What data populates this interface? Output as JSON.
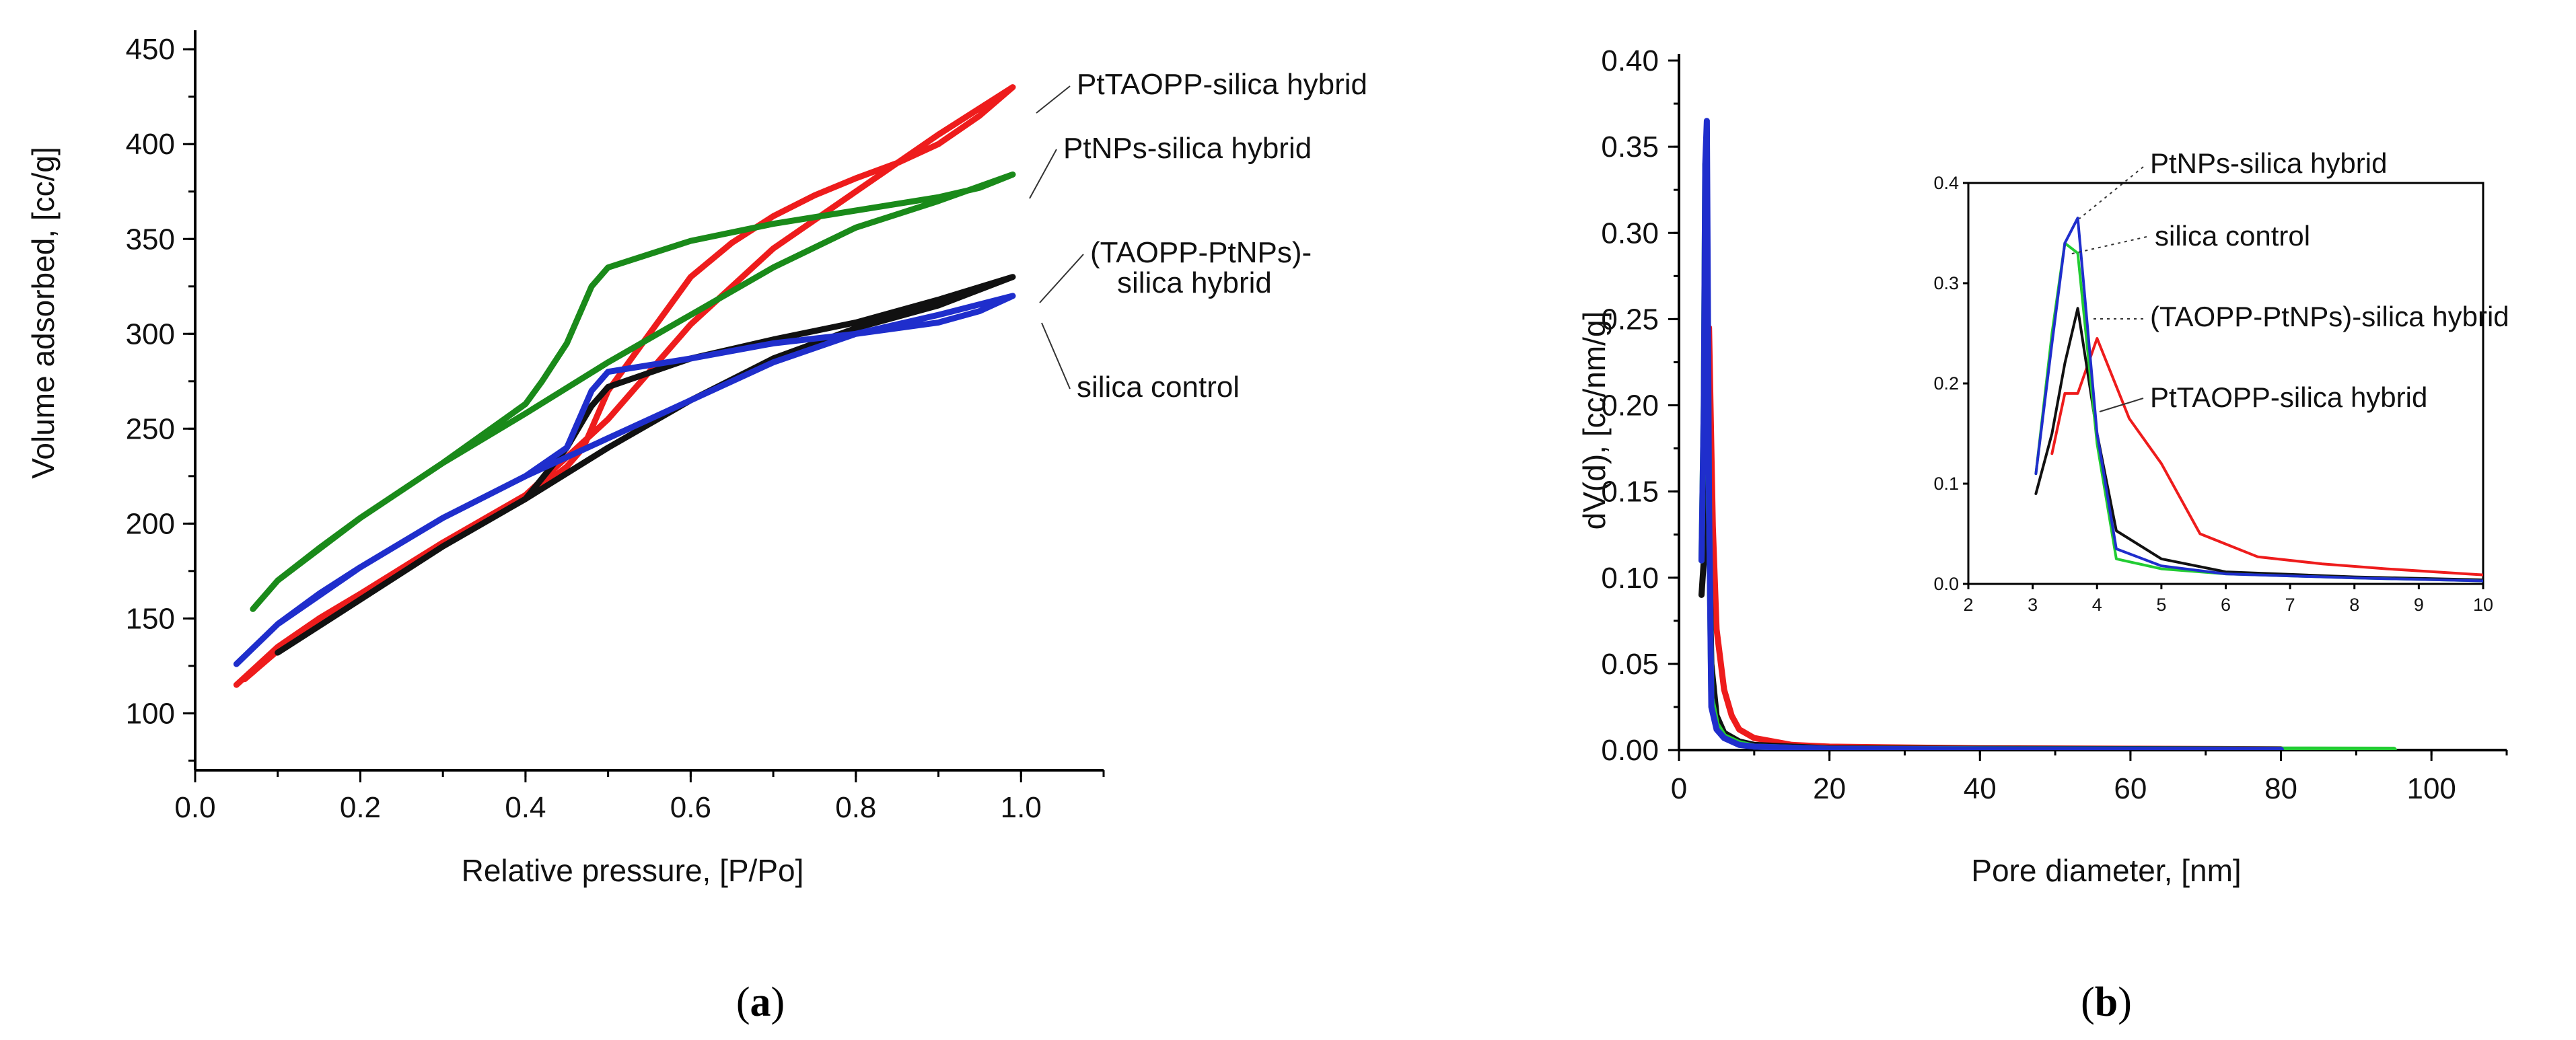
{
  "chart_data": [
    {
      "id": "a",
      "type": "line",
      "panel_label": "(a)",
      "panel_letter": "a",
      "xlabel": "Relative pressure, [P/Po]",
      "ylabel": "Volume adsorbed, [cc/g]",
      "xlim": [
        0.0,
        1.1
      ],
      "ylim": [
        70,
        460
      ],
      "x_ticks": [
        "0.0",
        "0.2",
        "0.4",
        "0.6",
        "0.8",
        "1.0"
      ],
      "y_ticks": [
        "100",
        "150",
        "200",
        "250",
        "300",
        "350",
        "400",
        "450"
      ],
      "series": [
        {
          "name": "PtTAOPP-silica hybrid",
          "color": "#ee1c1c",
          "x": [
            0.05,
            0.1,
            0.15,
            0.2,
            0.3,
            0.4,
            0.45,
            0.5,
            0.55,
            0.6,
            0.7,
            0.8,
            0.9,
            0.99,
            0.95,
            0.9,
            0.85,
            0.8,
            0.75,
            0.7,
            0.65,
            0.6,
            0.55,
            0.5,
            0.47,
            0.45,
            0.4,
            0.3,
            0.2,
            0.1,
            0.06
          ],
          "y": [
            115,
            135,
            150,
            163,
            190,
            215,
            235,
            255,
            280,
            305,
            345,
            375,
            405,
            430,
            415,
            400,
            390,
            382,
            373,
            362,
            348,
            330,
            300,
            270,
            240,
            230,
            213,
            189,
            162,
            133,
            118
          ]
        },
        {
          "name": "PtNPs-silica hybrid",
          "color": "#1a8a1a",
          "x": [
            0.07,
            0.1,
            0.15,
            0.2,
            0.3,
            0.4,
            0.5,
            0.6,
            0.7,
            0.8,
            0.9,
            0.99,
            0.95,
            0.9,
            0.8,
            0.7,
            0.6,
            0.5,
            0.48,
            0.45,
            0.42,
            0.4,
            0.3,
            0.2,
            0.1,
            0.07
          ],
          "y": [
            155,
            170,
            187,
            203,
            232,
            258,
            285,
            310,
            335,
            356,
            370,
            384,
            377,
            372,
            365,
            358,
            349,
            335,
            325,
            295,
            275,
            263,
            232,
            203,
            170,
            155
          ]
        },
        {
          "name": "(TAOPP-PtNPs)-silica hybrid",
          "color": "#111111",
          "x": [
            0.1,
            0.2,
            0.3,
            0.4,
            0.5,
            0.6,
            0.7,
            0.8,
            0.9,
            0.99,
            0.9,
            0.8,
            0.7,
            0.6,
            0.5,
            0.48,
            0.45,
            0.4,
            0.3,
            0.2,
            0.1
          ],
          "y": [
            132,
            160,
            188,
            213,
            240,
            265,
            287,
            303,
            315,
            330,
            318,
            306,
            297,
            287,
            272,
            262,
            240,
            213,
            188,
            160,
            132
          ]
        },
        {
          "name": "silica control",
          "color": "#1f2ecc",
          "x": [
            0.05,
            0.1,
            0.15,
            0.2,
            0.3,
            0.4,
            0.5,
            0.6,
            0.7,
            0.8,
            0.9,
            0.99,
            0.95,
            0.9,
            0.8,
            0.7,
            0.6,
            0.5,
            0.48,
            0.45,
            0.4,
            0.3,
            0.2,
            0.1,
            0.05
          ],
          "y": [
            126,
            147,
            163,
            177,
            203,
            225,
            245,
            265,
            285,
            300,
            310,
            320,
            312,
            306,
            300,
            295,
            287,
            280,
            270,
            240,
            225,
            203,
            177,
            147,
            126
          ]
        }
      ],
      "annotations": [
        "PtTAOPP-silica hybrid",
        "PtNPs-silica hybrid",
        "(TAOPP-PtNPs)-",
        "silica hybrid",
        "silica control"
      ]
    },
    {
      "id": "b",
      "type": "line",
      "panel_label": "(b)",
      "panel_letter": "b",
      "xlabel": "Pore diameter, [nm]",
      "ylabel": "dV(d), [cc/nm/g]",
      "xlim": [
        0,
        110
      ],
      "ylim": [
        0,
        0.4
      ],
      "x_ticks": [
        "0",
        "20",
        "40",
        "60",
        "80",
        "100"
      ],
      "y_ticks": [
        "0.00",
        "0.05",
        "0.10",
        "0.15",
        "0.20",
        "0.25",
        "0.30",
        "0.35",
        "0.40"
      ],
      "series": [
        {
          "name": "PtTAOPP-silica hybrid",
          "color": "#ee1c1c",
          "x": [
            3.3,
            3.6,
            4.0,
            4.5,
            5,
            6,
            7,
            8,
            10,
            15,
            20,
            40,
            60,
            80
          ],
          "y": [
            0.13,
            0.19,
            0.245,
            0.13,
            0.07,
            0.035,
            0.02,
            0.012,
            0.007,
            0.003,
            0.002,
            0.001,
            0.0008,
            0.0005
          ]
        },
        {
          "name": "(TAOPP-PtNPs)-silica hybrid",
          "color": "#111111",
          "x": [
            3.0,
            3.3,
            3.7,
            4.0,
            4.3,
            5,
            6,
            8,
            10,
            20,
            40,
            80
          ],
          "y": [
            0.09,
            0.11,
            0.275,
            0.13,
            0.05,
            0.02,
            0.01,
            0.005,
            0.003,
            0.001,
            0.0008,
            0.0004
          ]
        },
        {
          "name": "silica control",
          "color": "#22cc33",
          "x": [
            3.0,
            3.3,
            3.5,
            3.7,
            4.0,
            4.3,
            5,
            6,
            8,
            10,
            20,
            40,
            60,
            80,
            95
          ],
          "y": [
            0.11,
            0.2,
            0.34,
            0.33,
            0.14,
            0.03,
            0.015,
            0.008,
            0.004,
            0.002,
            0.0008,
            0.0005,
            0.0004,
            0.0003,
            0.0002
          ]
        },
        {
          "name": "PtNPs-silica hybrid",
          "color": "#1f2ecc",
          "x": [
            3.0,
            3.3,
            3.5,
            3.7,
            4.0,
            4.3,
            5,
            6,
            8,
            10,
            20,
            40,
            80
          ],
          "y": [
            0.11,
            0.2,
            0.34,
            0.365,
            0.14,
            0.025,
            0.012,
            0.007,
            0.003,
            0.002,
            0.0008,
            0.0004,
            0.0002
          ]
        }
      ]
    },
    {
      "id": "b-inset",
      "type": "line",
      "xlim": [
        2,
        10
      ],
      "ylim": [
        0,
        0.4
      ],
      "x_ticks": [
        "2",
        "3",
        "4",
        "5",
        "6",
        "7",
        "8",
        "9",
        "10"
      ],
      "y_ticks": [
        "0.0",
        "0.1",
        "0.2",
        "0.3",
        "0.4"
      ],
      "series": [
        {
          "name": "PtTAOPP-silica hybrid",
          "color": "#ee1c1c",
          "x": [
            3.3,
            3.5,
            3.7,
            4.0,
            4.5,
            5,
            5.6,
            6.5,
            7.5,
            8.5,
            10
          ],
          "y": [
            0.13,
            0.19,
            0.19,
            0.245,
            0.165,
            0.12,
            0.05,
            0.027,
            0.02,
            0.015,
            0.009
          ]
        },
        {
          "name": "(TAOPP-PtNPs)-silica hybrid",
          "color": "#111111",
          "x": [
            3.05,
            3.3,
            3.5,
            3.7,
            4.0,
            4.3,
            5,
            6,
            8,
            10
          ],
          "y": [
            0.09,
            0.15,
            0.22,
            0.275,
            0.15,
            0.053,
            0.025,
            0.012,
            0.007,
            0.004
          ]
        },
        {
          "name": "silica control",
          "color": "#22cc33",
          "x": [
            3.05,
            3.3,
            3.5,
            3.7,
            4.0,
            4.3,
            5,
            6,
            8,
            10
          ],
          "y": [
            0.11,
            0.25,
            0.34,
            0.33,
            0.14,
            0.025,
            0.015,
            0.01,
            0.006,
            0.003
          ]
        },
        {
          "name": "PtNPs-silica hybrid",
          "color": "#1f2ecc",
          "x": [
            3.05,
            3.3,
            3.5,
            3.7,
            4.0,
            4.3,
            5,
            6,
            8,
            10
          ],
          "y": [
            0.11,
            0.24,
            0.34,
            0.365,
            0.15,
            0.035,
            0.018,
            0.01,
            0.006,
            0.003
          ]
        }
      ],
      "annotations": [
        "PtNPs-silica hybrid",
        "silica control",
        "(TAOPP-PtNPs)-silica hybrid",
        "PtTAOPP-silica hybrid"
      ]
    }
  ]
}
